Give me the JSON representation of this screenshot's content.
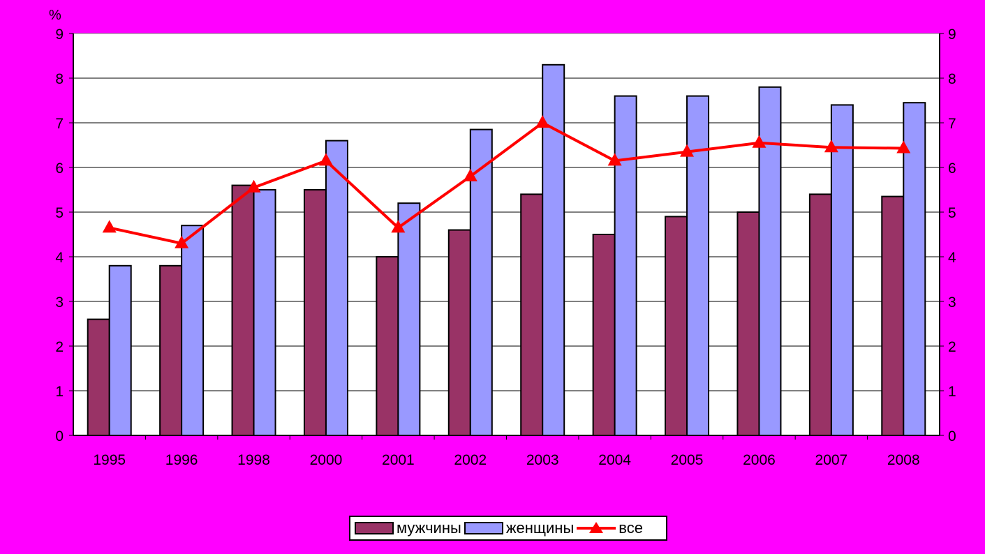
{
  "chart_data": {
    "type": "bar",
    "unit_label": "%",
    "categories": [
      "1995",
      "1996",
      "1998",
      "2000",
      "2001",
      "2002",
      "2003",
      "2004",
      "2005",
      "2006",
      "2007",
      "2008"
    ],
    "series": [
      {
        "name": "мужчины",
        "kind": "bar",
        "color": "#993366",
        "values": [
          2.6,
          3.8,
          5.6,
          5.5,
          4.0,
          4.6,
          5.4,
          4.5,
          4.9,
          5.0,
          5.4,
          5.35
        ]
      },
      {
        "name": "женщины",
        "kind": "bar",
        "color": "#9999FF",
        "values": [
          3.8,
          4.7,
          5.5,
          6.6,
          5.2,
          6.85,
          8.3,
          7.6,
          7.6,
          7.8,
          7.4,
          7.45
        ]
      },
      {
        "name": "все",
        "kind": "line",
        "color": "#FF0000",
        "values": [
          4.65,
          4.3,
          5.55,
          6.15,
          4.65,
          5.8,
          7.0,
          6.15,
          6.35,
          6.55,
          6.45,
          6.43
        ]
      }
    ],
    "ylim": [
      0,
      9
    ],
    "yticks": [
      "0",
      "1",
      "2",
      "3",
      "4",
      "5",
      "6",
      "7",
      "8",
      "9"
    ],
    "y2ticks": [
      "0",
      "1",
      "2",
      "3",
      "4",
      "5",
      "6",
      "7",
      "8",
      "9"
    ],
    "grid": true,
    "legend_position": "bottom"
  }
}
